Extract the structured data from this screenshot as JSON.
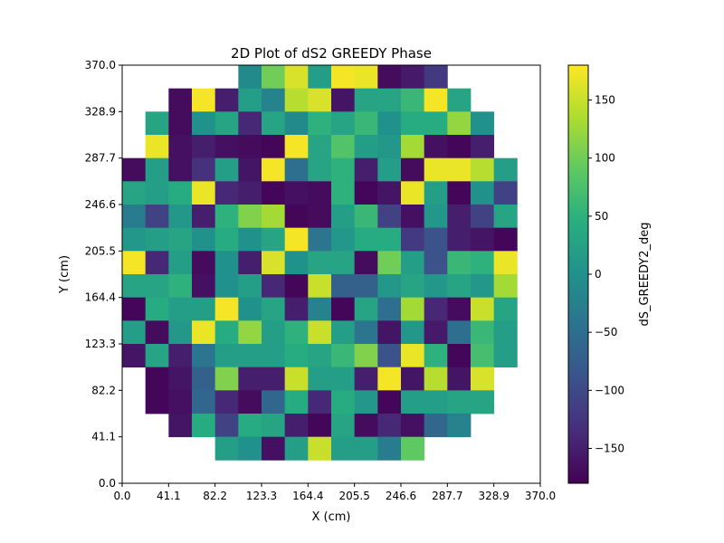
{
  "chart_data": {
    "type": "heatmap",
    "title": "2D Plot of dS2 GREEDY Phase",
    "xlabel": "X (cm)",
    "ylabel": "Y (cm)",
    "xlim": [
      0.0,
      370.0
    ],
    "ylim": [
      0.0,
      370.0
    ],
    "x_ticks": [
      "0.0",
      "41.1",
      "82.2",
      "123.3",
      "164.4",
      "205.5",
      "246.6",
      "287.7",
      "328.9",
      "370.0"
    ],
    "y_ticks": [
      "0.0",
      "41.1",
      "82.2",
      "123.3",
      "164.4",
      "205.5",
      "246.6",
      "287.7",
      "328.9",
      "370.0"
    ],
    "grid_cols": 18,
    "grid_rows": 18,
    "colorbar": {
      "label": "dS_GREEDY2_deg",
      "range": [
        -180,
        180
      ],
      "ticks": [
        "150",
        "100",
        "50",
        "0",
        "−50",
        "−100",
        "−150"
      ],
      "tick_values": [
        150,
        100,
        50,
        0,
        -50,
        -100,
        -150
      ],
      "colormap": "viridis"
    },
    "values_rows_top_to_bottom": [
      [
        null,
        null,
        null,
        null,
        null,
        -10,
        100,
        160,
        20,
        175,
        170,
        -170,
        -155,
        -120,
        null,
        null,
        null,
        null
      ],
      [
        null,
        null,
        -170,
        175,
        -150,
        20,
        -20,
        140,
        160,
        -160,
        30,
        30,
        60,
        175,
        30,
        null,
        null,
        null
      ],
      [
        null,
        30,
        -170,
        0,
        30,
        -140,
        30,
        -10,
        50,
        30,
        60,
        0,
        40,
        40,
        120,
        0,
        null,
        null
      ],
      [
        null,
        170,
        -165,
        -150,
        -165,
        -170,
        -175,
        175,
        30,
        80,
        20,
        10,
        130,
        -165,
        -175,
        -150,
        null,
        null
      ],
      [
        -170,
        20,
        -165,
        -130,
        20,
        -160,
        175,
        -50,
        30,
        50,
        -150,
        20,
        -170,
        170,
        170,
        140,
        20,
        null
      ],
      [
        30,
        20,
        40,
        170,
        -140,
        -150,
        -175,
        -165,
        -170,
        50,
        -175,
        -160,
        170,
        20,
        -175,
        0,
        -110,
        null
      ],
      [
        -30,
        -110,
        10,
        -150,
        50,
        110,
        130,
        -175,
        -170,
        20,
        60,
        -110,
        -165,
        10,
        -150,
        -110,
        30,
        null
      ],
      [
        10,
        20,
        30,
        0,
        40,
        0,
        30,
        175,
        -40,
        10,
        40,
        40,
        -120,
        -90,
        -150,
        -160,
        -175,
        null
      ],
      [
        175,
        -140,
        20,
        -170,
        0,
        -150,
        160,
        0,
        30,
        30,
        -170,
        100,
        20,
        -90,
        60,
        50,
        170,
        null
      ],
      [
        30,
        30,
        50,
        -165,
        0,
        20,
        -140,
        -175,
        150,
        -70,
        -70,
        10,
        30,
        10,
        30,
        10,
        130,
        null
      ],
      [
        -175,
        40,
        20,
        20,
        175,
        0,
        30,
        -150,
        -20,
        -175,
        30,
        -50,
        130,
        -140,
        -170,
        150,
        30,
        null
      ],
      [
        20,
        -170,
        10,
        170,
        40,
        120,
        20,
        50,
        150,
        20,
        -40,
        -160,
        10,
        -155,
        -50,
        60,
        20,
        null
      ],
      [
        -160,
        30,
        -150,
        -40,
        20,
        20,
        20,
        40,
        30,
        60,
        110,
        -90,
        170,
        50,
        -175,
        70,
        20,
        null
      ],
      [
        null,
        -175,
        -160,
        -70,
        110,
        -150,
        -150,
        150,
        20,
        20,
        -150,
        175,
        -160,
        140,
        -160,
        160,
        null,
        null
      ],
      [
        null,
        -175,
        -165,
        -60,
        -140,
        -170,
        -60,
        40,
        -140,
        40,
        10,
        -175,
        20,
        20,
        30,
        30,
        null,
        null
      ],
      [
        null,
        null,
        -160,
        40,
        -110,
        40,
        30,
        -150,
        -175,
        30,
        -170,
        -140,
        -165,
        -60,
        -20,
        null,
        null,
        null
      ],
      [
        null,
        null,
        null,
        null,
        20,
        0,
        -165,
        20,
        150,
        20,
        20,
        -30,
        90,
        null,
        null,
        null,
        null,
        null
      ],
      [
        null,
        null,
        null,
        null,
        null,
        null,
        null,
        null,
        null,
        null,
        null,
        null,
        null,
        null,
        null,
        null,
        null,
        null
      ]
    ]
  }
}
